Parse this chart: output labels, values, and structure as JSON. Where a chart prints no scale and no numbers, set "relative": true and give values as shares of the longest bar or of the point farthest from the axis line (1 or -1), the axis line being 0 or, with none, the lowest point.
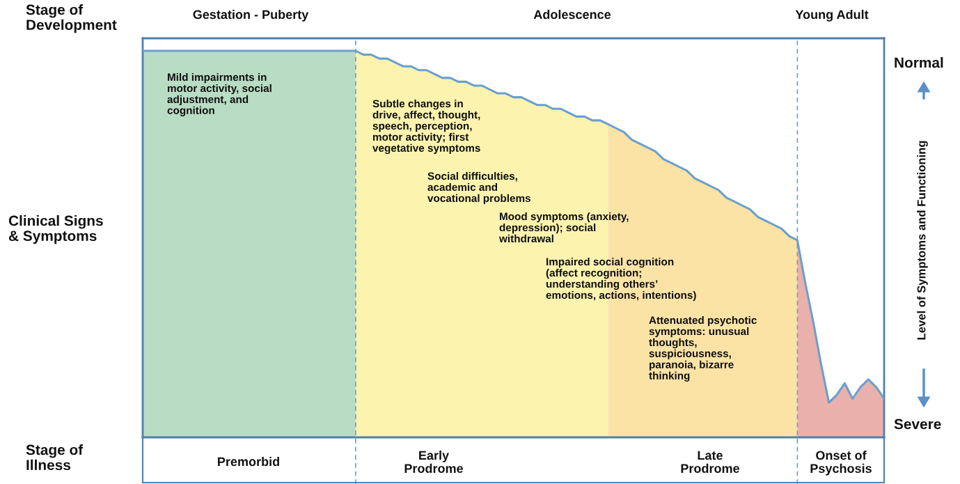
{
  "chart_data": {
    "type": "area",
    "relative": true,
    "tick_labels": false,
    "categories": [
      null,
      null,
      null,
      null,
      null,
      null,
      null,
      null,
      null,
      null,
      null,
      null,
      null,
      null,
      null,
      null,
      null,
      null,
      null,
      null,
      null,
      null,
      null,
      null,
      null,
      null,
      null,
      null,
      null,
      null,
      null,
      null,
      null,
      null,
      null,
      null,
      null,
      null,
      null,
      null,
      null,
      null,
      null,
      null,
      null,
      null,
      null,
      null,
      null,
      null,
      null,
      null,
      null,
      null,
      null,
      null,
      null,
      null,
      null,
      null,
      null,
      null,
      null,
      null,
      null,
      null,
      null,
      null,
      null,
      null,
      null,
      null,
      null,
      null,
      null,
      null,
      null,
      null,
      null,
      null,
      null,
      null,
      null,
      null,
      null,
      null,
      null,
      null,
      null,
      null,
      null,
      null,
      null,
      null,
      null
    ],
    "series": [
      {
        "color": "#b9dcc4",
        "values": [
          1,
          1,
          1,
          1,
          1,
          1,
          1,
          1,
          1,
          1,
          1,
          1,
          1,
          1,
          1,
          1,
          1,
          1,
          1,
          1,
          1,
          1,
          1,
          1,
          1,
          1,
          1,
          1.0,
          null,
          null,
          null,
          null,
          null,
          null,
          null,
          null,
          null,
          null,
          null,
          null,
          null,
          null,
          null,
          null,
          null,
          null,
          null,
          null,
          null,
          null,
          null,
          null,
          null,
          null,
          null,
          null,
          null,
          null,
          null,
          null,
          null,
          null,
          null,
          null,
          null,
          null,
          null,
          null,
          null,
          null,
          null,
          null,
          null,
          null,
          null,
          null,
          null,
          null,
          null,
          null,
          null,
          null,
          null,
          null,
          null,
          null,
          null,
          null,
          null,
          null,
          null,
          null,
          null,
          null,
          null
        ]
      },
      {
        "color": "#fbf3ae",
        "values": [
          null,
          null,
          null,
          null,
          null,
          null,
          null,
          null,
          null,
          null,
          null,
          null,
          null,
          null,
          null,
          null,
          null,
          null,
          null,
          null,
          null,
          null,
          null,
          null,
          null,
          null,
          null,
          1.0,
          0.99,
          0.99,
          0.98,
          0.98,
          0.97,
          0.96,
          0.96,
          0.95,
          0.95,
          0.94,
          0.93,
          0.93,
          0.92,
          0.92,
          0.91,
          0.91,
          0.9,
          0.89,
          0.89,
          0.88,
          0.88,
          0.87,
          0.86,
          0.86,
          0.85,
          0.85,
          0.84,
          0.83,
          0.83,
          0.82,
          0.82,
          0.81,
          null,
          null,
          null,
          null,
          null,
          null,
          null,
          null,
          null,
          null,
          null,
          null,
          null,
          null,
          null,
          null,
          null,
          null,
          null,
          null,
          null,
          null,
          null,
          null,
          null,
          null,
          null,
          null,
          null,
          null,
          null,
          null,
          null,
          null,
          null
        ]
      },
      {
        "color": "#fbe3a6",
        "values": [
          null,
          null,
          null,
          null,
          null,
          null,
          null,
          null,
          null,
          null,
          null,
          null,
          null,
          null,
          null,
          null,
          null,
          null,
          null,
          null,
          null,
          null,
          null,
          null,
          null,
          null,
          null,
          null,
          null,
          null,
          null,
          null,
          null,
          null,
          null,
          null,
          null,
          null,
          null,
          null,
          null,
          null,
          null,
          null,
          null,
          null,
          null,
          null,
          null,
          null,
          null,
          null,
          null,
          null,
          null,
          null,
          null,
          null,
          null,
          0.81,
          0.8,
          0.79,
          0.77,
          0.76,
          0.75,
          0.74,
          0.72,
          0.71,
          0.7,
          0.69,
          0.67,
          0.66,
          0.65,
          0.64,
          0.62,
          0.61,
          0.6,
          0.59,
          0.57,
          0.56,
          0.55,
          0.54,
          0.52,
          0.51,
          null,
          null,
          null,
          null,
          null,
          null,
          null,
          null,
          null,
          null,
          null
        ]
      },
      {
        "color": "#eab0ab",
        "values": [
          null,
          null,
          null,
          null,
          null,
          null,
          null,
          null,
          null,
          null,
          null,
          null,
          null,
          null,
          null,
          null,
          null,
          null,
          null,
          null,
          null,
          null,
          null,
          null,
          null,
          null,
          null,
          null,
          null,
          null,
          null,
          null,
          null,
          null,
          null,
          null,
          null,
          null,
          null,
          null,
          null,
          null,
          null,
          null,
          null,
          null,
          null,
          null,
          null,
          null,
          null,
          null,
          null,
          null,
          null,
          null,
          null,
          null,
          null,
          null,
          null,
          null,
          null,
          null,
          null,
          null,
          null,
          null,
          null,
          null,
          null,
          null,
          null,
          null,
          null,
          null,
          null,
          null,
          null,
          null,
          null,
          null,
          null,
          0.51,
          0.4,
          0.3,
          0.19,
          0.09,
          0.11,
          0.14,
          0.1,
          0.13,
          0.15,
          0.13,
          0.1
        ]
      },
      {
        "type": "line",
        "color": "#6a9fd0",
        "values": [
          1,
          1,
          1,
          1,
          1,
          1,
          1,
          1,
          1,
          1,
          1,
          1,
          1,
          1,
          1,
          1,
          1,
          1,
          1,
          1,
          1,
          1,
          1,
          1,
          1,
          1,
          1,
          1.0,
          0.99,
          0.99,
          0.98,
          0.98,
          0.97,
          0.96,
          0.96,
          0.95,
          0.95,
          0.94,
          0.93,
          0.93,
          0.92,
          0.92,
          0.91,
          0.91,
          0.9,
          0.89,
          0.89,
          0.88,
          0.88,
          0.87,
          0.86,
          0.86,
          0.85,
          0.85,
          0.84,
          0.83,
          0.83,
          0.82,
          0.82,
          0.81,
          0.8,
          0.79,
          0.77,
          0.76,
          0.75,
          0.74,
          0.72,
          0.71,
          0.7,
          0.69,
          0.67,
          0.66,
          0.65,
          0.64,
          0.62,
          0.61,
          0.6,
          0.59,
          0.57,
          0.56,
          0.55,
          0.54,
          0.52,
          0.51,
          0.4,
          0.3,
          0.19,
          0.09,
          0.11,
          0.14,
          0.1,
          0.13,
          0.15,
          0.13,
          0.1
        ]
      }
    ],
    "annotations": [
      "Stage of\nDevelopment",
      "Gestation - Puberty",
      "Adolescence",
      "Young Adult",
      "Clinical Signs\n& Symptoms",
      "Stage of\nIllness",
      "Premorbid",
      "Early\nProdrome",
      "Late\nProdrome",
      "Onset of\nPsychosis",
      "Normal",
      "Severe",
      "Level of Symptoms and Functioning",
      "Mild impairments in\nmotor activity, social\nadjustment, and\ncognition",
      "Subtle changes in\ndrive, affect, thought,\nspeech, perception,\nmotor activity; first\nvegetative symptoms",
      "Social difficulties,\nacademic and\nvocational problems",
      "Mood symptoms (anxiety,\ndepression); social\nwithdrawal",
      "Impaired social cognition\n(affect recognition;\nunderstanding others’\nemotions, actions, intentions)",
      "Attenuated psychotic\nsymptoms: unusual\nthoughts,\nsuspiciousness,\nparanoia, bizarre\nthinking"
    ]
  }
}
